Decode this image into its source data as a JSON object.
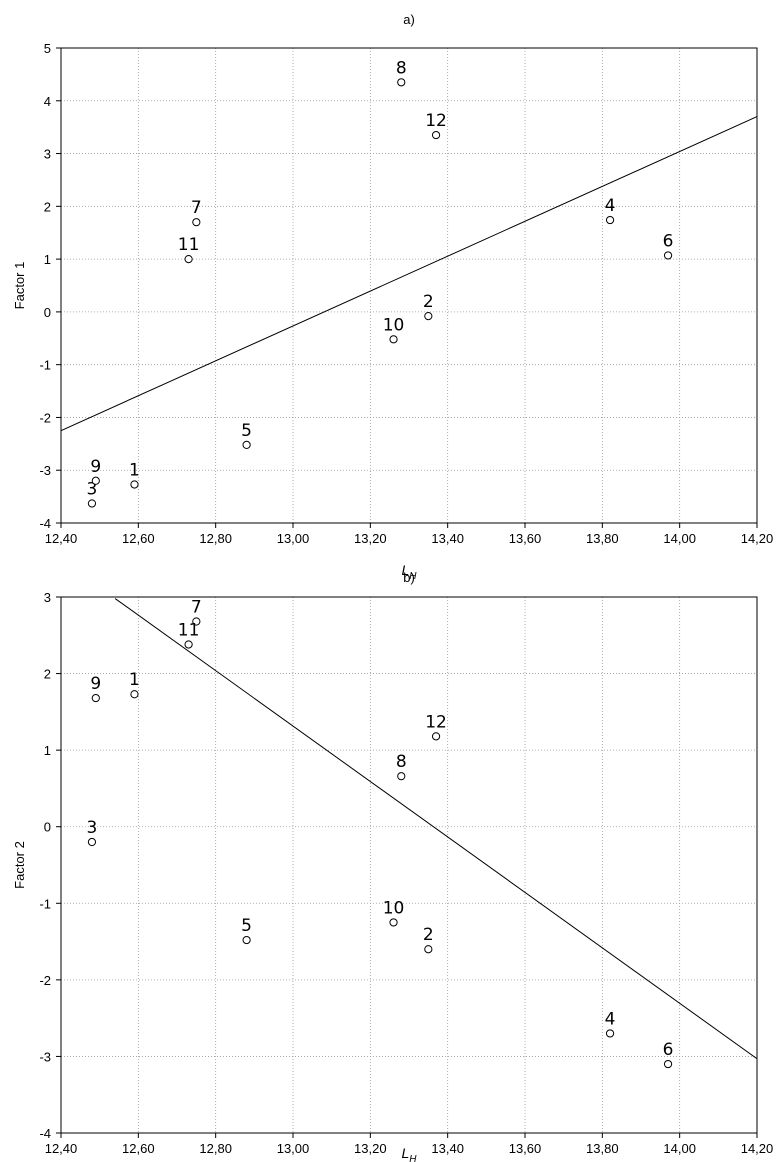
{
  "chart_data": [
    {
      "type": "scatter",
      "title": "a)",
      "xlabel_main": "L",
      "xlabel_sub": "H",
      "ylabel": "Factor 1",
      "xlim": [
        12.4,
        14.2
      ],
      "ylim": [
        -4,
        5
      ],
      "xticks": [
        "12,40",
        "12,60",
        "12,80",
        "13,00",
        "13,20",
        "13,40",
        "13,60",
        "13,80",
        "14,00",
        "14,20"
      ],
      "yticks": [
        "-4",
        "-3",
        "-2",
        "-1",
        "0",
        "1",
        "2",
        "3",
        "4",
        "5"
      ],
      "grid": true,
      "points": [
        {
          "label": "1",
          "x": 12.59,
          "y": -3.27
        },
        {
          "label": "2",
          "x": 13.35,
          "y": -0.08
        },
        {
          "label": "3",
          "x": 12.48,
          "y": -3.63
        },
        {
          "label": "4",
          "x": 13.82,
          "y": 1.74
        },
        {
          "label": "5",
          "x": 12.88,
          "y": -2.52
        },
        {
          "label": "6",
          "x": 13.97,
          "y": 1.07
        },
        {
          "label": "7",
          "x": 12.75,
          "y": 1.7
        },
        {
          "label": "8",
          "x": 13.28,
          "y": 4.35
        },
        {
          "label": "9",
          "x": 12.49,
          "y": -3.2
        },
        {
          "label": "10",
          "x": 13.26,
          "y": -0.52
        },
        {
          "label": "11",
          "x": 12.73,
          "y": 1.0
        },
        {
          "label": "12",
          "x": 13.37,
          "y": 3.35
        }
      ],
      "fit_line": {
        "x": [
          12.4,
          14.2
        ],
        "y": [
          -2.25,
          3.7
        ]
      }
    },
    {
      "type": "scatter",
      "title": "b)",
      "xlabel_main": "L",
      "xlabel_sub": "H",
      "ylabel": "Factor 2",
      "xlim": [
        12.4,
        14.2
      ],
      "ylim": [
        -4,
        3
      ],
      "xticks": [
        "12,40",
        "12,60",
        "12,80",
        "13,00",
        "13,20",
        "13,40",
        "13,60",
        "13,80",
        "14,00",
        "14,20"
      ],
      "yticks": [
        "-4",
        "-3",
        "-2",
        "-1",
        "0",
        "1",
        "2",
        "3"
      ],
      "grid": true,
      "points": [
        {
          "label": "1",
          "x": 12.59,
          "y": 1.73
        },
        {
          "label": "2",
          "x": 13.35,
          "y": -1.6
        },
        {
          "label": "3",
          "x": 12.48,
          "y": -0.2
        },
        {
          "label": "4",
          "x": 13.82,
          "y": -2.7
        },
        {
          "label": "5",
          "x": 12.88,
          "y": -1.48
        },
        {
          "label": "6",
          "x": 13.97,
          "y": -3.1
        },
        {
          "label": "7",
          "x": 12.75,
          "y": 2.68
        },
        {
          "label": "8",
          "x": 13.28,
          "y": 0.66
        },
        {
          "label": "9",
          "x": 12.49,
          "y": 1.68
        },
        {
          "label": "10",
          "x": 13.26,
          "y": -1.25
        },
        {
          "label": "11",
          "x": 12.73,
          "y": 2.38
        },
        {
          "label": "12",
          "x": 13.37,
          "y": 1.18
        }
      ],
      "fit_line": {
        "x": [
          12.54,
          14.2
        ],
        "y": [
          2.98,
          -3.03
        ]
      }
    }
  ]
}
